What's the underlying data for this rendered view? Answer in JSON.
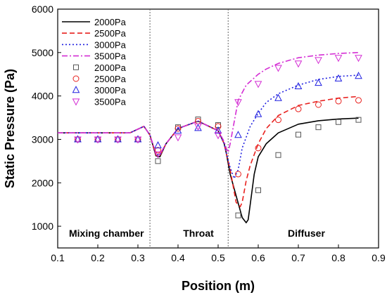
{
  "chart_data": {
    "type": "line",
    "xlabel": "Position (m)",
    "ylabel": "Static Pressure (Pa)",
    "xlim": [
      0.1,
      0.9
    ],
    "ylim": [
      500,
      6000
    ],
    "x_ticks": [
      "0.1",
      "0.2",
      "0.3",
      "0.4",
      "0.5",
      "0.6",
      "0.7",
      "0.8",
      "0.9"
    ],
    "y_ticks": [
      "1000",
      "2000",
      "3000",
      "4000",
      "5000",
      "6000"
    ],
    "grid": false,
    "legend_position": "top-left",
    "regions": [
      {
        "label": "Mixing chamber"
      },
      {
        "label": "Throat"
      },
      {
        "label": "Diffuser"
      }
    ],
    "region_boundaries": [
      0.33,
      0.525
    ],
    "series": [
      {
        "name": "2000Pa",
        "kind": "line",
        "color": "#000000",
        "dash": "solid",
        "x": [
          0.1,
          0.28,
          0.315,
          0.33,
          0.345,
          0.355,
          0.37,
          0.4,
          0.45,
          0.5,
          0.515,
          0.52,
          0.53,
          0.545,
          0.56,
          0.57,
          0.575,
          0.58,
          0.59,
          0.6,
          0.62,
          0.65,
          0.7,
          0.75,
          0.8,
          0.85
        ],
        "y": [
          3150,
          3150,
          3300,
          3100,
          2620,
          2600,
          2900,
          3250,
          3420,
          3200,
          2900,
          2700,
          2200,
          1700,
          1200,
          1080,
          1150,
          1500,
          2200,
          2600,
          2900,
          3150,
          3350,
          3430,
          3470,
          3490
        ]
      },
      {
        "name": "2500Pa",
        "kind": "line",
        "color": "#e8211e",
        "dash": "dashed",
        "x": [
          0.1,
          0.28,
          0.315,
          0.33,
          0.345,
          0.355,
          0.37,
          0.4,
          0.45,
          0.5,
          0.515,
          0.52,
          0.53,
          0.545,
          0.555,
          0.56,
          0.57,
          0.58,
          0.6,
          0.62,
          0.65,
          0.7,
          0.75,
          0.8,
          0.85
        ],
        "y": [
          3150,
          3150,
          3300,
          3100,
          2640,
          2620,
          2900,
          3250,
          3420,
          3200,
          2900,
          2700,
          2300,
          1550,
          1450,
          1550,
          2050,
          2400,
          2900,
          3250,
          3550,
          3780,
          3880,
          3950,
          3990
        ]
      },
      {
        "name": "3000Pa",
        "kind": "line",
        "color": "#1f1fe0",
        "dash": "dotted",
        "x": [
          0.1,
          0.28,
          0.315,
          0.33,
          0.345,
          0.355,
          0.37,
          0.4,
          0.45,
          0.5,
          0.515,
          0.52,
          0.53,
          0.54,
          0.55,
          0.56,
          0.58,
          0.6,
          0.62,
          0.65,
          0.7,
          0.75,
          0.8,
          0.85
        ],
        "y": [
          3150,
          3150,
          3300,
          3100,
          2660,
          2640,
          2900,
          3250,
          3420,
          3200,
          2900,
          2700,
          2350,
          2100,
          2300,
          2800,
          3300,
          3600,
          3850,
          4050,
          4250,
          4380,
          4450,
          4480
        ]
      },
      {
        "name": "3500Pa",
        "kind": "line",
        "color": "#d42ed4",
        "dash": "dashdot",
        "x": [
          0.1,
          0.28,
          0.315,
          0.33,
          0.345,
          0.355,
          0.37,
          0.4,
          0.45,
          0.5,
          0.515,
          0.52,
          0.525,
          0.53,
          0.54,
          0.55,
          0.57,
          0.6,
          0.62,
          0.65,
          0.7,
          0.75,
          0.8,
          0.85
        ],
        "y": [
          3150,
          3150,
          3300,
          3100,
          2680,
          2660,
          2900,
          3250,
          3420,
          3200,
          2950,
          2800,
          2700,
          2900,
          3400,
          3900,
          4250,
          4500,
          4620,
          4750,
          4880,
          4940,
          4980,
          5000
        ]
      },
      {
        "name": "2000Pa",
        "kind": "marker",
        "marker": "square",
        "color": "#555555",
        "x": [
          0.15,
          0.2,
          0.25,
          0.3,
          0.35,
          0.4,
          0.45,
          0.5,
          0.55,
          0.6,
          0.65,
          0.7,
          0.75,
          0.8,
          0.85
        ],
        "y": [
          3000,
          3000,
          3000,
          3000,
          2500,
          3280,
          3460,
          3330,
          1250,
          1830,
          2640,
          3110,
          3280,
          3400,
          3450
        ]
      },
      {
        "name": "2500Pa",
        "kind": "marker",
        "marker": "circle",
        "color": "#e8211e",
        "x": [
          0.15,
          0.2,
          0.25,
          0.3,
          0.35,
          0.4,
          0.45,
          0.5,
          0.55,
          0.6,
          0.65,
          0.7,
          0.75,
          0.8,
          0.85
        ],
        "y": [
          3000,
          3000,
          3000,
          3000,
          2750,
          3250,
          3420,
          3300,
          2200,
          2800,
          3450,
          3700,
          3800,
          3880,
          3900
        ]
      },
      {
        "name": "3000Pa",
        "kind": "marker",
        "marker": "triangle-up",
        "color": "#1f1fe0",
        "x": [
          0.15,
          0.2,
          0.25,
          0.3,
          0.35,
          0.4,
          0.45,
          0.5,
          0.55,
          0.6,
          0.65,
          0.7,
          0.75,
          0.8,
          0.85
        ],
        "y": [
          3000,
          3000,
          3000,
          3000,
          2860,
          3200,
          3260,
          3200,
          3100,
          3580,
          3950,
          4220,
          4300,
          4400,
          4460
        ]
      },
      {
        "name": "3500Pa",
        "kind": "marker",
        "marker": "triangle-down",
        "color": "#d42ed4",
        "x": [
          0.15,
          0.2,
          0.25,
          0.3,
          0.35,
          0.4,
          0.45,
          0.5,
          0.55,
          0.6,
          0.65,
          0.7,
          0.75,
          0.8,
          0.85
        ],
        "y": [
          3000,
          3000,
          3000,
          3000,
          2660,
          3050,
          3300,
          3100,
          3860,
          4280,
          4650,
          4750,
          4830,
          4880,
          4880
        ]
      }
    ]
  }
}
